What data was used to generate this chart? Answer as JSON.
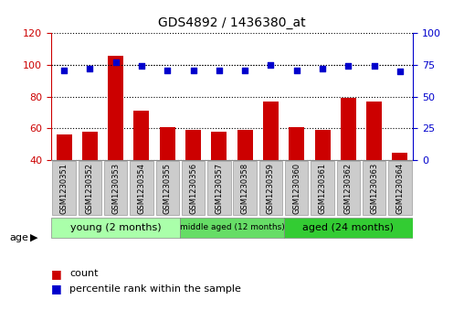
{
  "title": "GDS4892 / 1436380_at",
  "samples": [
    "GSM1230351",
    "GSM1230352",
    "GSM1230353",
    "GSM1230354",
    "GSM1230355",
    "GSM1230356",
    "GSM1230357",
    "GSM1230358",
    "GSM1230359",
    "GSM1230360",
    "GSM1230361",
    "GSM1230362",
    "GSM1230363",
    "GSM1230364"
  ],
  "counts": [
    56,
    58,
    106,
    71,
    61,
    59,
    58,
    59,
    77,
    61,
    59,
    79,
    77,
    45
  ],
  "percentiles": [
    71,
    72,
    77,
    74,
    71,
    71,
    71,
    71,
    75,
    71,
    72,
    74,
    74,
    70
  ],
  "ylim_left": [
    40,
    120
  ],
  "ylim_right": [
    0,
    100
  ],
  "yticks_left": [
    40,
    60,
    80,
    100,
    120
  ],
  "yticks_right": [
    0,
    25,
    50,
    75,
    100
  ],
  "bar_color": "#cc0000",
  "scatter_color": "#0000cc",
  "groups": [
    {
      "label": "young (2 months)",
      "start": 0,
      "end": 5,
      "color": "#aaffaa",
      "fontsize": 8
    },
    {
      "label": "middle aged (12 months)",
      "start": 5,
      "end": 9,
      "color": "#66dd66",
      "fontsize": 6.5
    },
    {
      "label": "aged (24 months)",
      "start": 9,
      "end": 14,
      "color": "#33cc33",
      "fontsize": 8
    }
  ],
  "xlabel_group": "age",
  "legend_count_label": "count",
  "legend_percentile_label": "percentile rank within the sample",
  "bg_color": "#ffffff",
  "tick_label_bg": "#cccccc",
  "bar_bottom": 40
}
